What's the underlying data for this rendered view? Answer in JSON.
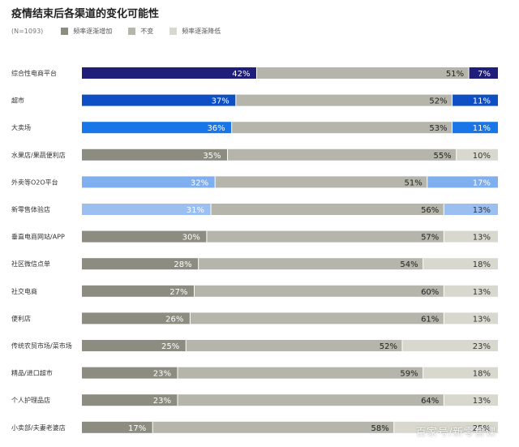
{
  "header": {
    "title": "疫情结束后各渠道的变化可能性",
    "sample": "(N=1093)"
  },
  "legend": [
    {
      "label": "频率逐渐增加",
      "color": "#8c8c80"
    },
    {
      "label": "不变",
      "color": "#b5b5ab"
    },
    {
      "label": "频率逐渐降低",
      "color": "#d8d8cf"
    }
  ],
  "watermark": "百家号/新零售课",
  "chart_data": {
    "type": "bar",
    "orientation": "horizontal",
    "stacked": true,
    "categories": [
      "综合性电商平台",
      "超市",
      "大卖场",
      "水果店/果蔬便利店",
      "外卖等O2O平台",
      "新零售体验店",
      "垂直电商网站/APP",
      "社区微信点单",
      "社交电商",
      "便利店",
      "传统农贸市场/菜市场",
      "精品/进口超市",
      "个人护理品店",
      "小卖部/夫妻老婆店"
    ],
    "series": [
      {
        "name": "频率逐渐增加",
        "values": [
          42,
          37,
          36,
          35,
          32,
          31,
          30,
          28,
          27,
          26,
          25,
          23,
          23,
          17
        ]
      },
      {
        "name": "不变",
        "values": [
          51,
          52,
          53,
          55,
          51,
          56,
          57,
          54,
          60,
          61,
          52,
          59,
          64,
          58
        ]
      },
      {
        "name": "频率逐渐降低",
        "values": [
          7,
          11,
          11,
          10,
          17,
          13,
          13,
          18,
          13,
          13,
          23,
          18,
          13,
          25
        ]
      }
    ],
    "value_labels": {
      "increase": [
        "42%",
        "37%",
        "36%",
        "35%",
        "32%",
        "31%",
        "30%",
        "28%",
        "27%",
        "26%",
        "25%",
        "23%",
        "23%",
        "17%"
      ],
      "same": [
        "51%",
        "52%",
        "53%",
        "55%",
        "51%",
        "56%",
        "57%",
        "54%",
        "60%",
        "61%",
        "52%",
        "59%",
        "64%",
        "58%"
      ],
      "decrease": [
        "7%",
        "11%",
        "11%",
        "10%",
        "17%",
        "13%",
        "13%",
        "18%",
        "13%",
        "13%",
        "23%",
        "18%",
        "13%",
        "25%"
      ]
    },
    "increase_colors": [
      "#1f1f7a",
      "#0f4fc4",
      "#1976e8",
      "#8c8c80",
      "#80aff0",
      "#9cbff2",
      "#8c8c80",
      "#8c8c80",
      "#8c8c80",
      "#8c8c80",
      "#8c8c80",
      "#8c8c80",
      "#8c8c80",
      "#8c8c80"
    ],
    "decrease_colors": [
      "#1f1f7a",
      "#0f4fc4",
      "#1976e8",
      "#d8d8cf",
      "#80aff0",
      "#9cbff2",
      "#d8d8cf",
      "#d8d8cf",
      "#d8d8cf",
      "#d8d8cf",
      "#d8d8cf",
      "#d8d8cf",
      "#d8d8cf",
      "#d8d8cf"
    ],
    "same_color": "#b5b5ab",
    "xlim": [
      0,
      100
    ]
  }
}
